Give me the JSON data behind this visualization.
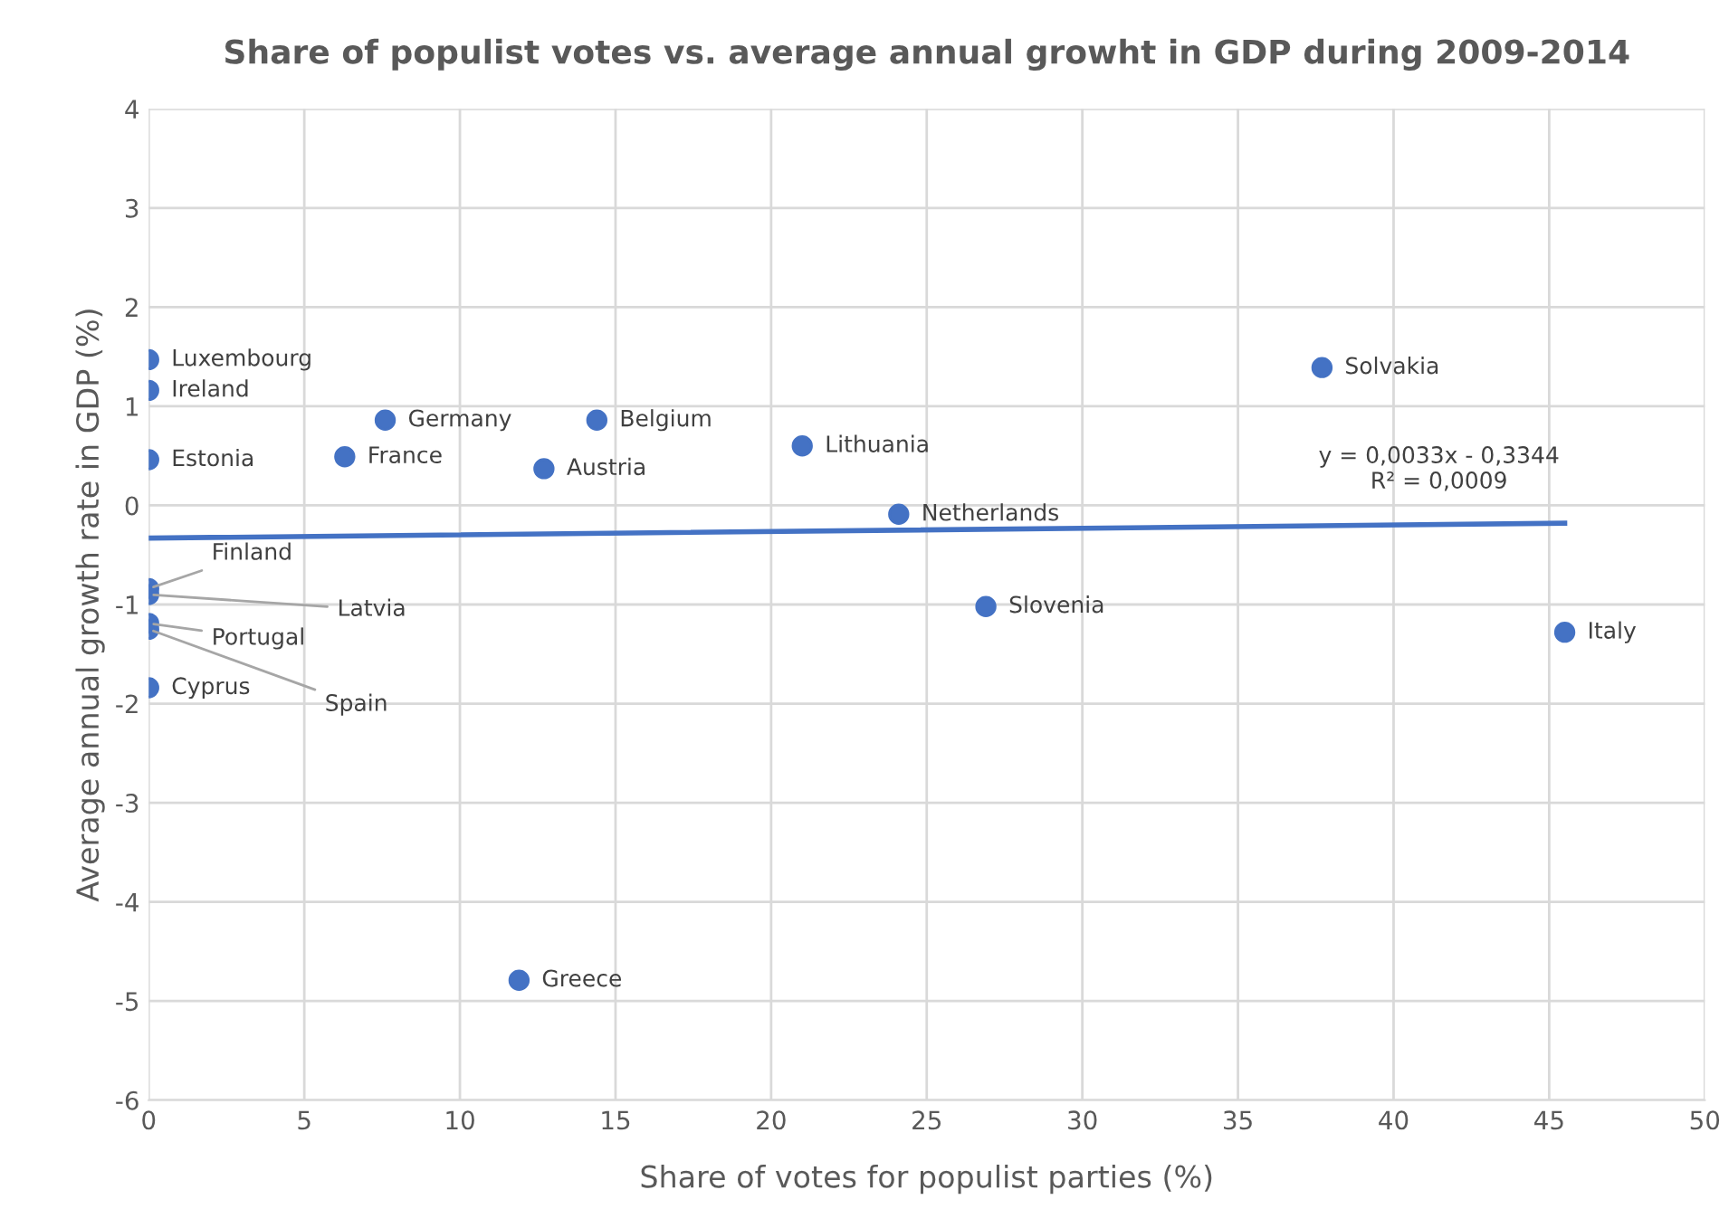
{
  "chart_data": {
    "type": "scatter",
    "title": "Share of populist votes vs. average annual growht in GDP during 2009-2014",
    "xlabel": "Share of votes for populist parties (%)",
    "ylabel": "Average annual growth rate in GDP (%)",
    "xlim": [
      0,
      50
    ],
    "xticks": [
      0,
      5,
      10,
      15,
      20,
      25,
      30,
      35,
      40,
      45,
      50
    ],
    "ylim": [
      -6,
      4
    ],
    "yticks": [
      -6,
      -5,
      -4,
      -3,
      -2,
      -1,
      0,
      1,
      2,
      3,
      4
    ],
    "grid": true,
    "marker": "circle",
    "series": [
      {
        "color": "#4472c4",
        "x": [
          0,
          0,
          0,
          7.6,
          6.3,
          14.4,
          12.7,
          21.0,
          24.1,
          37.7,
          26.9,
          45.5,
          11.9,
          0,
          0,
          0,
          0,
          0
        ],
        "values": [
          1.47,
          1.16,
          0.46,
          0.86,
          0.49,
          0.86,
          0.37,
          0.6,
          -0.09,
          1.39,
          -1.02,
          -1.28,
          -4.79,
          -0.84,
          -0.9,
          -1.19,
          -1.25,
          -1.84
        ]
      },
      {
        "type": "line",
        "marker": "none",
        "color": "#4472c4",
        "x": [
          0,
          45.5
        ],
        "values": [
          -0.33,
          -0.18
        ]
      }
    ],
    "annotations": [
      {
        "text": "Luxembourg",
        "x": 0,
        "y": 1.47
      },
      {
        "text": "Ireland",
        "x": 0,
        "y": 1.16
      },
      {
        "text": "Estonia",
        "x": 0,
        "y": 0.46
      },
      {
        "text": "Germany",
        "x": 7.6,
        "y": 0.86
      },
      {
        "text": "France",
        "x": 6.3,
        "y": 0.49
      },
      {
        "text": "Belgium",
        "x": 14.4,
        "y": 0.86
      },
      {
        "text": "Austria",
        "x": 12.7,
        "y": 0.37
      },
      {
        "text": "Lithuania",
        "x": 21.0,
        "y": 0.6
      },
      {
        "text": "Netherlands",
        "x": 24.1,
        "y": -0.09
      },
      {
        "text": "Solvakia",
        "x": 37.7,
        "y": 1.39
      },
      {
        "text": "Slovenia",
        "x": 26.9,
        "y": -1.02
      },
      {
        "text": "Italy",
        "x": 45.5,
        "y": -1.28
      },
      {
        "text": "Greece",
        "x": 11.9,
        "y": -4.79
      },
      {
        "text": "Finland",
        "x": 0,
        "y": -0.84
      },
      {
        "text": "Latvia",
        "x": 0,
        "y": -0.9
      },
      {
        "text": "Portugal",
        "x": 0,
        "y": -1.19
      },
      {
        "text": "Spain",
        "x": 0,
        "y": -1.25
      },
      {
        "text": "Cyprus",
        "x": 0,
        "y": -1.84
      },
      {
        "text": "y = 0,0033x - 0,3344\nR² = 0,0009",
        "x": 45.5,
        "y": -0.18
      }
    ]
  }
}
